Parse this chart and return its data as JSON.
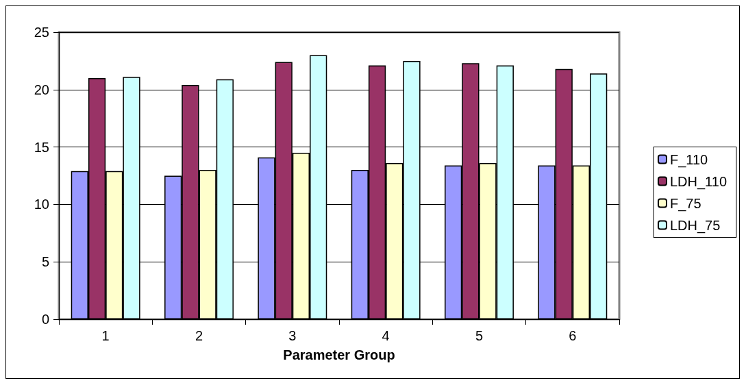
{
  "chart_data": {
    "type": "bar",
    "xlabel": "Parameter Group",
    "categories": [
      "1",
      "2",
      "3",
      "4",
      "5",
      "6"
    ],
    "series": [
      {
        "name": "F_110",
        "color": "#9999ff",
        "values": [
          12.9,
          12.5,
          14.1,
          13.0,
          13.4,
          13.4
        ]
      },
      {
        "name": "LDH_110",
        "color": "#993366",
        "values": [
          21.0,
          20.4,
          22.4,
          22.1,
          22.3,
          21.8
        ]
      },
      {
        "name": "F_75",
        "color": "#ffffcc",
        "values": [
          12.9,
          13.0,
          14.5,
          13.6,
          13.6,
          13.4
        ]
      },
      {
        "name": "LDH_75",
        "color": "#ccffff",
        "values": [
          21.1,
          20.9,
          23.0,
          22.5,
          22.1,
          21.4
        ]
      }
    ],
    "ylim": [
      0,
      25
    ],
    "yticks": [
      0,
      5,
      10,
      15,
      20,
      25
    ],
    "grid": "y",
    "legend": "right"
  }
}
